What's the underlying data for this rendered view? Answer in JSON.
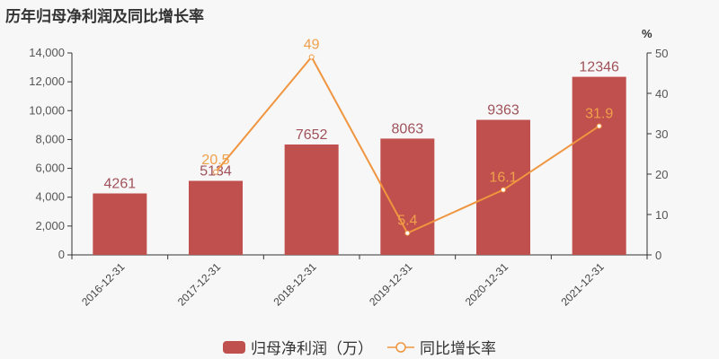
{
  "title": "历年归母净利润及同比增长率",
  "colors": {
    "bar": "#c0504d",
    "line": "#f0953f",
    "bar_label": "#a0525a",
    "line_label": "#f0a04b",
    "axis": "#333333",
    "background": "#f7f7f7"
  },
  "legend": {
    "bar_label": "归母净利润（万）",
    "line_label": "同比增长率"
  },
  "left_axis": {
    "ticks": [
      "0",
      "2,000",
      "4,000",
      "6,000",
      "8,000",
      "10,000",
      "12,000",
      "14,000"
    ]
  },
  "right_axis": {
    "unit": "%",
    "ticks": [
      "0",
      "10",
      "20",
      "30",
      "40",
      "50"
    ]
  },
  "chart_data": {
    "type": "bar",
    "title": "历年归母净利润及同比增长率",
    "categories": [
      "2016-12-31",
      "2017-12-31",
      "2018-12-31",
      "2019-12-31",
      "2020-12-31",
      "2021-12-31"
    ],
    "series": [
      {
        "name": "归母净利润（万）",
        "type": "bar",
        "axis": "left",
        "values": [
          4261,
          5134,
          7652,
          8063,
          9363,
          12346
        ]
      },
      {
        "name": "同比增长率",
        "type": "line",
        "axis": "right",
        "values": [
          null,
          20.5,
          49,
          5.4,
          16.1,
          31.9
        ]
      }
    ],
    "xlabel": "",
    "ylabel": "",
    "ylabel_right": "%",
    "ylim": [
      0,
      14000
    ],
    "ylim_right": [
      0,
      50
    ],
    "grid": false,
    "legend_position": "bottom"
  }
}
